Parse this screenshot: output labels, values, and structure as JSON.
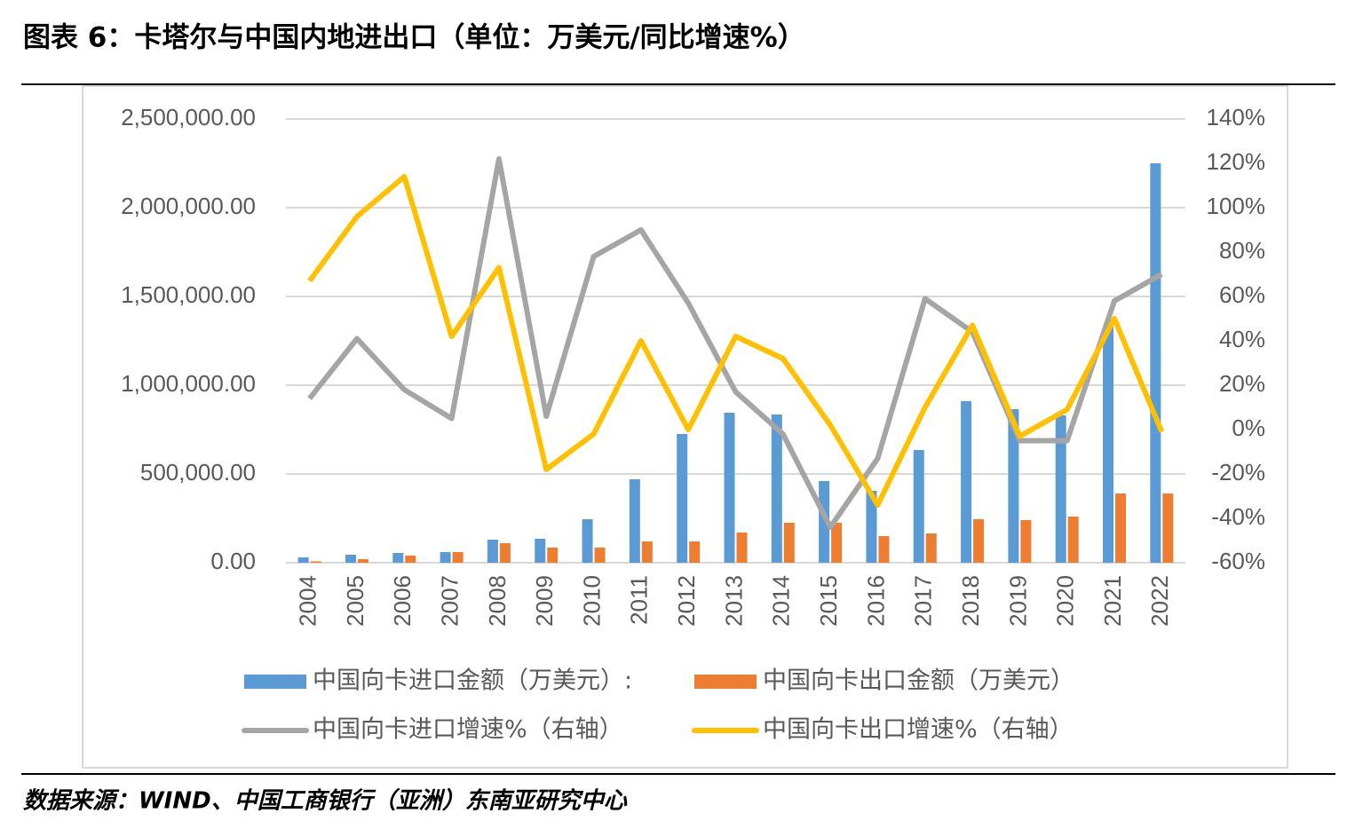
{
  "title": "图表 6：卡塔尔与中国内地进出口（单位：万美元/同比增速%）",
  "source": "数据来源：WIND、中国工商银行（亚洲）东南亚研究中心",
  "chart_data": {
    "type": "bar-line",
    "categories": [
      "2004",
      "2005",
      "2006",
      "2007",
      "2008",
      "2009",
      "2010",
      "2011",
      "2012",
      "2013",
      "2014",
      "2015",
      "2016",
      "2017",
      "2018",
      "2019",
      "2020",
      "2021",
      "2022"
    ],
    "series": [
      {
        "name": "中国向卡进口金额（万美元）:",
        "type": "bar",
        "color": "#5b9bd5",
        "values": [
          30000,
          45000,
          55000,
          60000,
          130000,
          135000,
          245000,
          470000,
          725000,
          845000,
          835000,
          460000,
          405000,
          635000,
          910000,
          865000,
          830000,
          1330000,
          2250000
        ]
      },
      {
        "name": "中国向卡出口金额（万美元）",
        "type": "bar",
        "color": "#ed7d31",
        "values": [
          8000,
          20000,
          40000,
          60000,
          110000,
          85000,
          85000,
          120000,
          120000,
          170000,
          225000,
          225000,
          150000,
          165000,
          245000,
          240000,
          260000,
          390000,
          390000
        ]
      },
      {
        "name": "中国向卡进口增速%（右轴）",
        "type": "line",
        "axis": "y2",
        "color": "#a5a5a5",
        "values": [
          14,
          41,
          18,
          5,
          122,
          6,
          78,
          90,
          57,
          17,
          -2,
          -44,
          -13,
          59,
          44,
          -5,
          -5,
          58,
          70
        ]
      },
      {
        "name": "中国向卡出口增速%（右轴）",
        "type": "line",
        "axis": "y2",
        "color": "#ffc000",
        "values": [
          67,
          96,
          114,
          42,
          73,
          -18,
          -2,
          40,
          0,
          42,
          32,
          2,
          -34,
          10,
          47,
          -3,
          9,
          50,
          -1
        ]
      }
    ],
    "ylim": [
      0,
      2500000
    ],
    "yticks": [
      {
        "value": 0,
        "label": "0.00"
      },
      {
        "value": 500000,
        "label": "500,000.00"
      },
      {
        "value": 1000000,
        "label": "1,000,000.00"
      },
      {
        "value": 1500000,
        "label": "1,500,000.00"
      },
      {
        "value": 2000000,
        "label": "2,000,000.00"
      },
      {
        "value": 2500000,
        "label": "2,500,000.00"
      }
    ],
    "y2lim": [
      -60,
      140
    ],
    "y2ticks": [
      {
        "value": -60,
        "label": "-60%"
      },
      {
        "value": -40,
        "label": "-40%"
      },
      {
        "value": -20,
        "label": "-20%"
      },
      {
        "value": 0,
        "label": "0%"
      },
      {
        "value": 20,
        "label": "20%"
      },
      {
        "value": 40,
        "label": "40%"
      },
      {
        "value": 60,
        "label": "60%"
      },
      {
        "value": 80,
        "label": "80%"
      },
      {
        "value": 100,
        "label": "100%"
      },
      {
        "value": 120,
        "label": "120%"
      },
      {
        "value": 140,
        "label": "140%"
      }
    ],
    "grid": true
  }
}
